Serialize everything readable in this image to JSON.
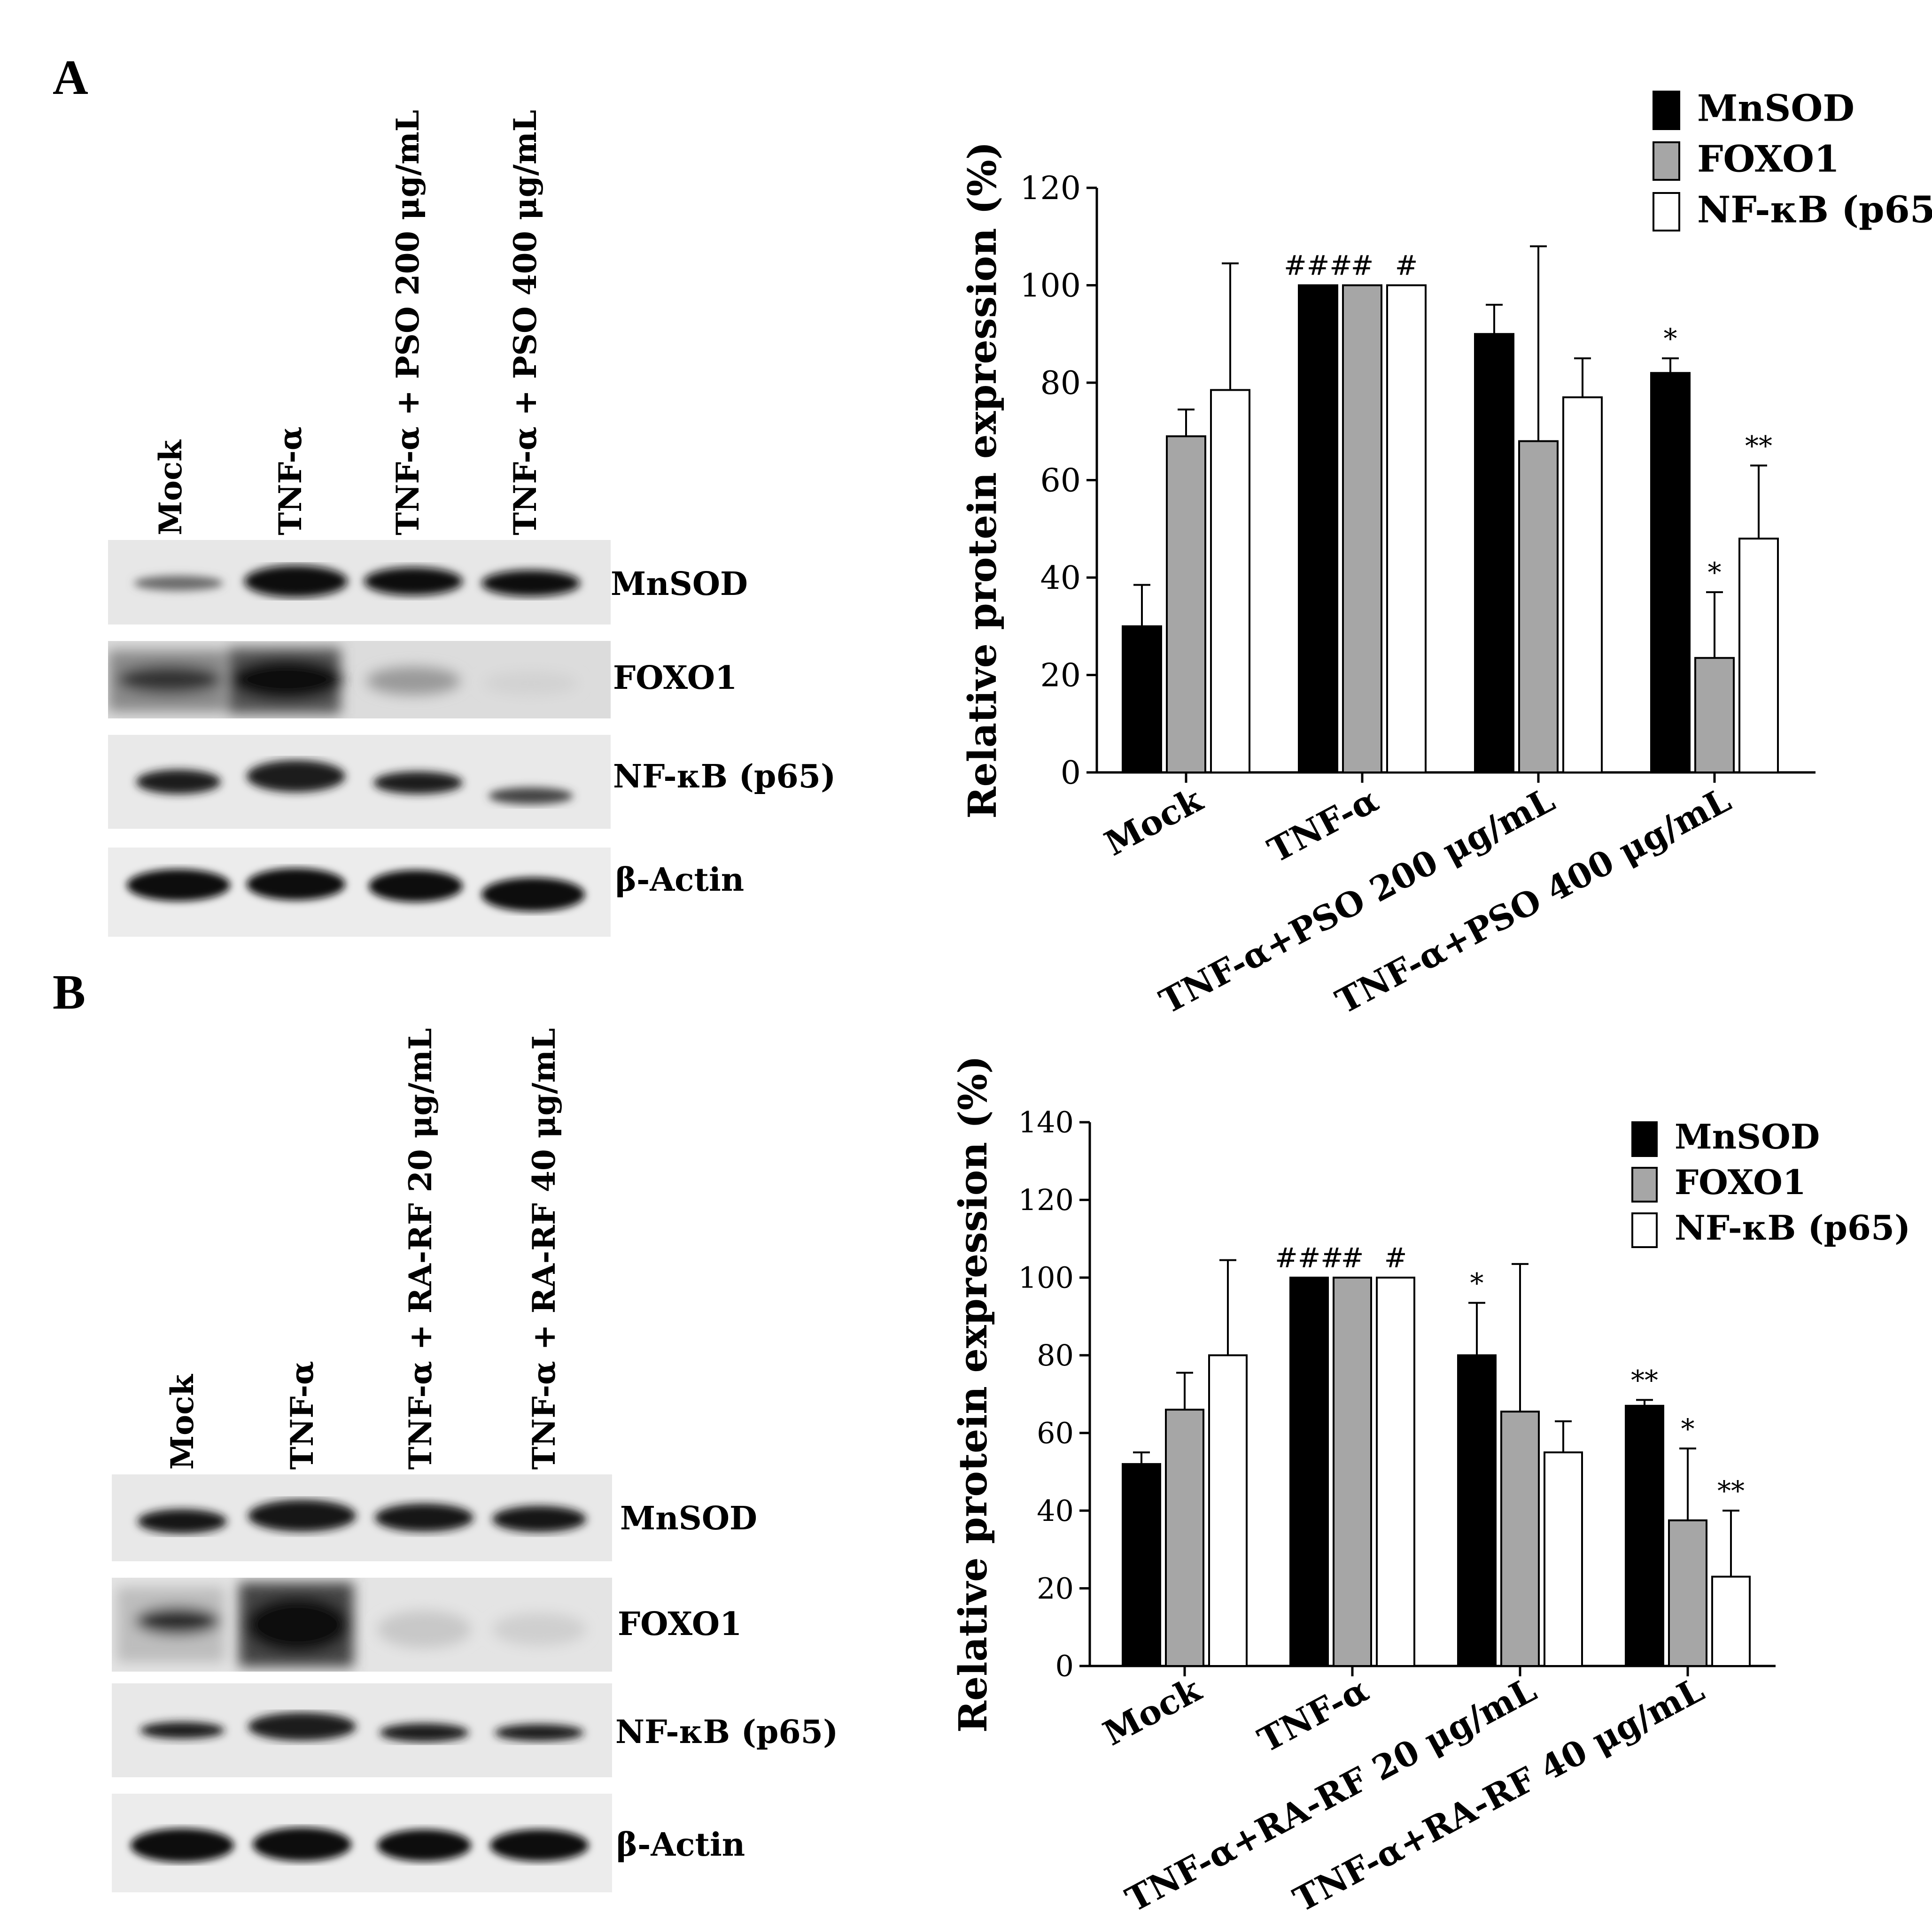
{
  "panels": [
    {
      "letter": "A",
      "lanes": [
        "Mock",
        "TNF-α",
        "TNF-α + PSO 200 μg/mL",
        "TNF-α + PSO 400 μg/mL"
      ],
      "blot_rows": [
        "MnSOD",
        "FOXO1",
        "NF-κB (p65)",
        "β-Actin"
      ]
    },
    {
      "letter": "B",
      "lanes": [
        "Mock",
        "TNF-α",
        "TNF-α + RA-RF 20 μg/mL",
        "TNF-α + RA-RF 40 μg/mL"
      ],
      "blot_rows": [
        "MnSOD",
        "FOXO1",
        "NF-κB (p65)",
        "β-Actin"
      ]
    }
  ],
  "colors": {
    "MnSOD": "#000000",
    "FOXO1": "#a6a6a6",
    "NF-κB (p65)": "#ffffff"
  },
  "chart_data": [
    {
      "type": "bar",
      "panel": "A",
      "categories": [
        "Mock",
        "TNF-α",
        "TNF-α+PSO 200 μg/mL",
        "TNF-α+PSO 400 μg/mL"
      ],
      "ylabel": "Relative protein expression (%)",
      "xlabel": "",
      "ylim": [
        0,
        120
      ],
      "yticks": [
        0,
        20,
        40,
        60,
        80,
        100,
        120
      ],
      "legend": "top-right",
      "grid": false,
      "series": [
        {
          "name": "MnSOD",
          "values": [
            30,
            100,
            90,
            82
          ],
          "errors": [
            8.5,
            0,
            6,
            3
          ],
          "annotations": [
            "",
            "###",
            "",
            "*"
          ]
        },
        {
          "name": "FOXO1",
          "values": [
            69,
            100,
            68,
            23.5
          ],
          "errors": [
            5.5,
            0,
            40,
            13.5
          ],
          "annotations": [
            "",
            "#",
            "",
            "*"
          ]
        },
        {
          "name": "NF-κB (p65)",
          "values": [
            78.5,
            100,
            77,
            48
          ],
          "errors": [
            26,
            0,
            8,
            15
          ],
          "annotations": [
            "",
            "#",
            "",
            "**"
          ]
        }
      ]
    },
    {
      "type": "bar",
      "panel": "B",
      "categories": [
        "Mock",
        "TNF-α",
        "TNF-α+RA-RF 20 μg/mL",
        "TNF-α+RA-RF 40 μg/mL"
      ],
      "ylabel": "Relative protein expression (%)",
      "xlabel": "",
      "ylim": [
        0,
        140
      ],
      "yticks": [
        0,
        20,
        40,
        60,
        80,
        100,
        120,
        140
      ],
      "legend": "top-right",
      "grid": false,
      "series": [
        {
          "name": "MnSOD",
          "values": [
            52,
            100,
            80,
            67
          ],
          "errors": [
            3,
            0,
            13.5,
            1.5
          ],
          "annotations": [
            "",
            "###",
            "*",
            "**"
          ]
        },
        {
          "name": "FOXO1",
          "values": [
            66,
            100,
            65.5,
            37.5
          ],
          "errors": [
            9.5,
            0,
            38,
            18.5
          ],
          "annotations": [
            "",
            "#",
            "",
            "*"
          ]
        },
        {
          "name": "NF-κB (p65)",
          "values": [
            80,
            100,
            55,
            23
          ],
          "errors": [
            24.5,
            0,
            8,
            17
          ],
          "annotations": [
            "",
            "#",
            "",
            "**"
          ]
        }
      ]
    }
  ]
}
